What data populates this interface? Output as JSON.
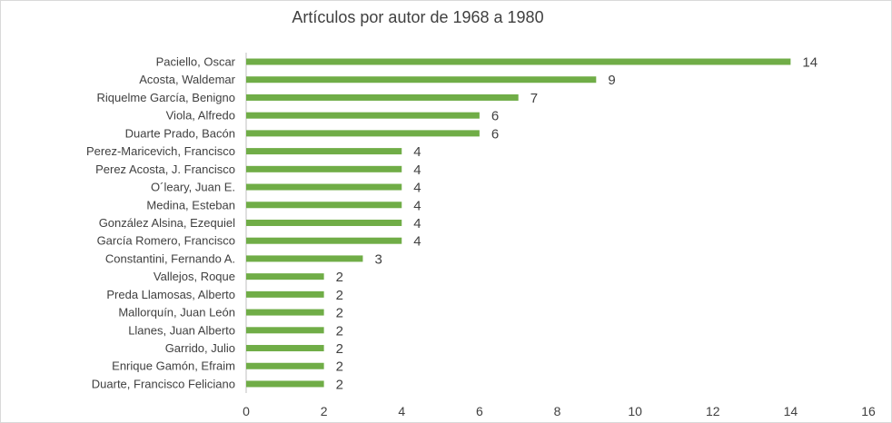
{
  "chart_data": {
    "type": "bar",
    "orientation": "horizontal",
    "title": "Artículos por autor de 1968 a 1980",
    "categories": [
      "Paciello, Oscar",
      "Acosta, Waldemar",
      "Riquelme García, Benigno",
      "Viola, Alfredo",
      "Duarte Prado, Bacón",
      "Perez-Maricevich, Francisco",
      "Perez Acosta, J. Francisco",
      "O´leary, Juan E.",
      "Medina, Esteban",
      "González Alsina, Ezequiel",
      "García Romero, Francisco",
      "Constantini,  Fernando A.",
      "Vallejos, Roque",
      "Preda Llamosas, Alberto",
      "Mallorquín, Juan León",
      "Llanes, Juan Alberto",
      "Garrido, Julio",
      "Enrique Gamón, Efraim",
      "Duarte, Francisco Feliciano"
    ],
    "values": [
      14,
      9,
      7,
      6,
      6,
      4,
      4,
      4,
      4,
      4,
      4,
      3,
      2,
      2,
      2,
      2,
      2,
      2,
      2
    ],
    "xlim": [
      0,
      16
    ],
    "xticks": [
      0,
      2,
      4,
      6,
      8,
      10,
      12,
      14,
      16
    ],
    "grid": false,
    "legend": "none",
    "bar_color": "#70ad47"
  }
}
